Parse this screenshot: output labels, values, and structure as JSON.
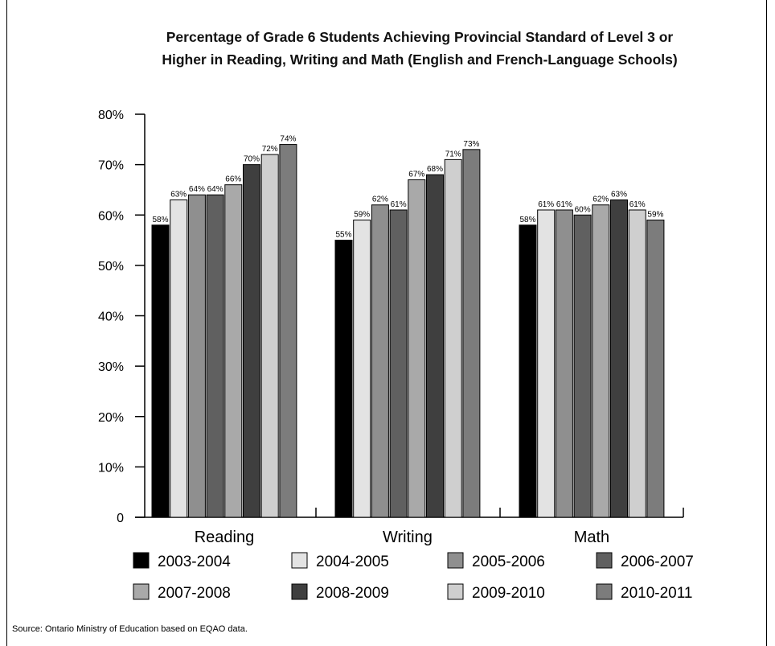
{
  "chart_data": {
    "type": "bar",
    "title": "Percentage of Grade 6 Students Achieving Provincial Standard of Level 3 or Higher in Reading, Writing and Math (English and French-Language Schools)",
    "title_lines": [
      "Percentage of Grade 6 Students Achieving Provincial Standard of Level 3 or",
      "Higher in Reading, Writing and Math (English and French-Language Schools)"
    ],
    "categories": [
      "Reading",
      "Writing",
      "Math"
    ],
    "series": [
      {
        "name": "2003-2004",
        "color": "#000000",
        "values": [
          58,
          55,
          58
        ]
      },
      {
        "name": "2004-2005",
        "color": "#e3e3e3",
        "values": [
          63,
          59,
          61
        ]
      },
      {
        "name": "2005-2006",
        "color": "#8f8f8f",
        "values": [
          64,
          62,
          61
        ]
      },
      {
        "name": "2006-2007",
        "color": "#606060",
        "values": [
          64,
          61,
          60
        ]
      },
      {
        "name": "2007-2008",
        "color": "#a9a9a9",
        "values": [
          66,
          67,
          62
        ]
      },
      {
        "name": "2008-2009",
        "color": "#3f3f3f",
        "values": [
          70,
          68,
          63
        ]
      },
      {
        "name": "2009-2010",
        "color": "#cfcfcf",
        "values": [
          72,
          71,
          61
        ]
      },
      {
        "name": "2010-2011",
        "color": "#7c7c7c",
        "values": [
          74,
          73,
          59
        ]
      }
    ],
    "ylim": [
      0,
      80
    ],
    "y_ticks": [
      {
        "value": 0,
        "label": "0"
      },
      {
        "value": 10,
        "label": "10%"
      },
      {
        "value": 20,
        "label": "20%"
      },
      {
        "value": 30,
        "label": "30%"
      },
      {
        "value": 40,
        "label": "40%"
      },
      {
        "value": 50,
        "label": "50%"
      },
      {
        "value": 60,
        "label": "60%"
      },
      {
        "value": 70,
        "label": "70%"
      },
      {
        "value": 80,
        "label": "80%"
      }
    ],
    "value_suffix": "%",
    "grid": false,
    "legend_position": "bottom"
  },
  "source": "Source: Ontario Ministry of Education based on EQAO data."
}
